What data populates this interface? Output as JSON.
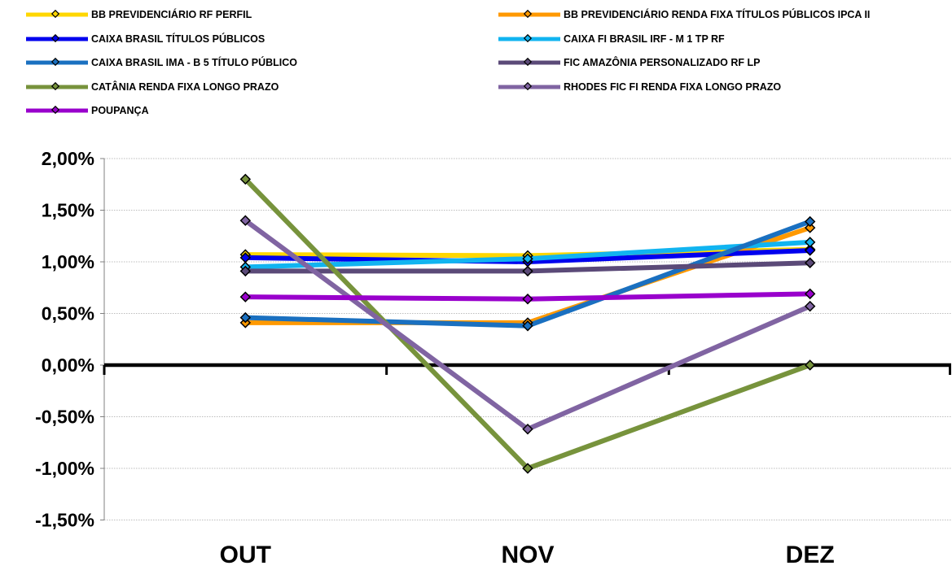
{
  "chart_data": {
    "type": "line",
    "categories": [
      "OUT",
      "NOV",
      "DEZ"
    ],
    "ylim": [
      -1.5,
      2.0
    ],
    "yticks": [
      "2,00%",
      "1,50%",
      "1,00%",
      "0,50%",
      "0,00%",
      "-0,50%",
      "-1,00%",
      "-1,50%"
    ],
    "ytick_values": [
      2.0,
      1.5,
      1.0,
      0.5,
      0.0,
      -0.5,
      -1.0,
      -1.5
    ],
    "grid": true,
    "legend_position": "top",
    "series": [
      {
        "name": "BB PREVIDENCIÁRIO RF PERFIL",
        "color": "#FFD700",
        "values": [
          1.07,
          1.06,
          1.12
        ]
      },
      {
        "name": "BB PREVIDENCIÁRIO RENDA FIXA TÍTULOS PÚBLICOS IPCA II",
        "color": "#FF9900",
        "values": [
          0.41,
          0.41,
          1.33
        ]
      },
      {
        "name": "CAIXA BRASIL TÍTULOS PÚBLICOS",
        "color": "#0000EE",
        "values": [
          1.04,
          1.0,
          1.11
        ]
      },
      {
        "name": "CAIXA FI BRASIL IRF - M 1 TP RF",
        "color": "#11B4F0",
        "values": [
          0.95,
          1.03,
          1.19
        ]
      },
      {
        "name": "CAIXA BRASIL IMA - B 5 TÍTULO PÚBLICO",
        "color": "#1A70C0",
        "values": [
          0.46,
          0.38,
          1.39
        ]
      },
      {
        "name": "FIC AMAZÔNIA PERSONALIZADO RF LP",
        "color": "#5B4A78",
        "values": [
          0.91,
          0.91,
          0.99
        ]
      },
      {
        "name": "CATÂNIA RENDA FIXA LONGO PRAZO",
        "color": "#77933C",
        "values": [
          1.8,
          -1.0,
          0.0
        ]
      },
      {
        "name": "RHODES FIC FI RENDA FIXA LONGO PRAZO",
        "color": "#8064A2",
        "values": [
          1.4,
          -0.62,
          0.57
        ]
      },
      {
        "name": "POUPANÇA",
        "color": "#9900CC",
        "values": [
          0.66,
          0.64,
          0.69
        ]
      }
    ]
  }
}
